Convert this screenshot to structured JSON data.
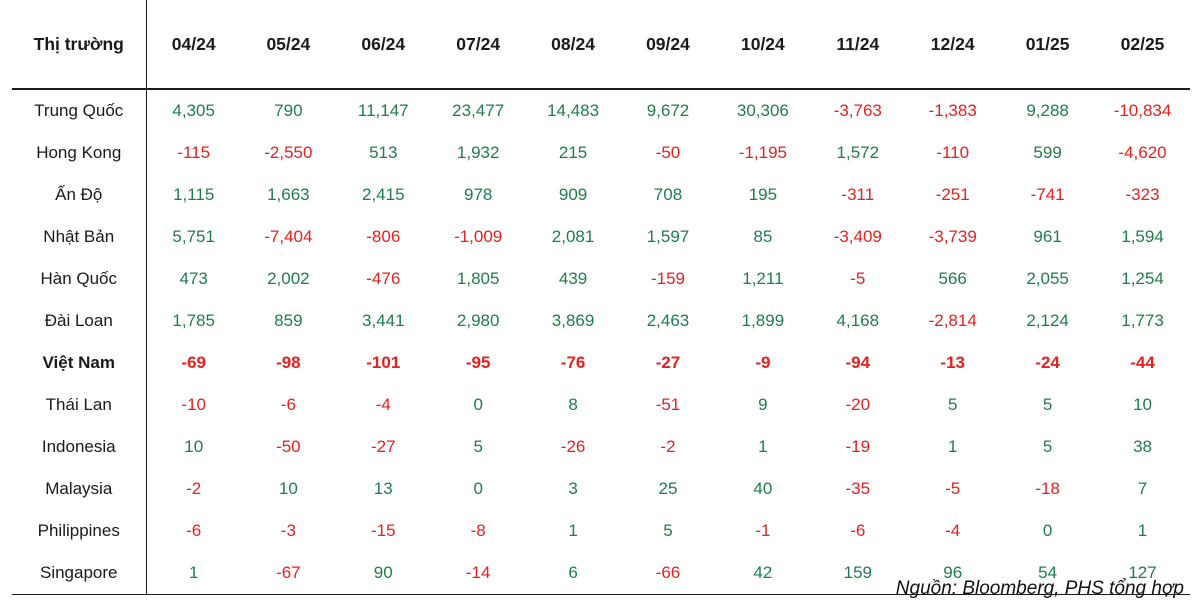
{
  "header": {
    "market_column_label": "Thị trường"
  },
  "footer": {
    "source_note": "Nguồn: Bloomberg, PHS tổng hợp"
  },
  "colors": {
    "positive": "#1f7d4c",
    "negative": "#e6201f",
    "rule": "#1c1c1c"
  },
  "chart_data": {
    "type": "table",
    "market_column_label": "Thị trường",
    "columns": [
      "04/24",
      "05/24",
      "06/24",
      "07/24",
      "08/24",
      "09/24",
      "10/24",
      "11/24",
      "12/24",
      "01/25",
      "02/25"
    ],
    "rows": [
      {
        "market": "Trung Quốc",
        "bold": false,
        "values": [
          4305,
          790,
          11147,
          23477,
          14483,
          9672,
          30306,
          -3763,
          -1383,
          9288,
          -10834
        ]
      },
      {
        "market": "Hong Kong",
        "bold": false,
        "values": [
          -115,
          -2550,
          513,
          1932,
          215,
          -50,
          -1195,
          1572,
          -110,
          599,
          -4620
        ]
      },
      {
        "market": "Ấn Độ",
        "bold": false,
        "values": [
          1115,
          1663,
          2415,
          978,
          909,
          708,
          195,
          -311,
          -251,
          -741,
          -323
        ]
      },
      {
        "market": "Nhật Bản",
        "bold": false,
        "values": [
          5751,
          -7404,
          -806,
          -1009,
          2081,
          1597,
          85,
          -3409,
          -3739,
          961,
          1594
        ]
      },
      {
        "market": "Hàn Quốc",
        "bold": false,
        "values": [
          473,
          2002,
          -476,
          1805,
          439,
          -159,
          1211,
          -5,
          566,
          2055,
          1254
        ]
      },
      {
        "market": "Đài Loan",
        "bold": false,
        "values": [
          1785,
          859,
          3441,
          2980,
          3869,
          2463,
          1899,
          4168,
          -2814,
          2124,
          1773
        ]
      },
      {
        "market": "Việt Nam",
        "bold": true,
        "values": [
          -69,
          -98,
          -101,
          -95,
          -76,
          -27,
          -9,
          -94,
          -13,
          -24,
          -44
        ]
      },
      {
        "market": "Thái Lan",
        "bold": false,
        "values": [
          -10,
          -6,
          -4,
          0,
          8,
          -51,
          9,
          -20,
          5,
          5,
          10
        ]
      },
      {
        "market": "Indonesia",
        "bold": false,
        "values": [
          10,
          -50,
          -27,
          5,
          -26,
          -2,
          1,
          -19,
          1,
          5,
          38
        ]
      },
      {
        "market": "Malaysia",
        "bold": false,
        "values": [
          -2,
          10,
          13,
          0,
          3,
          25,
          40,
          -35,
          -5,
          -18,
          7
        ]
      },
      {
        "market": "Philippines",
        "bold": false,
        "values": [
          -6,
          -3,
          -15,
          -8,
          1,
          5,
          -1,
          -6,
          -4,
          0,
          1
        ]
      },
      {
        "market": "Singapore",
        "bold": false,
        "values": [
          1,
          -67,
          90,
          -14,
          6,
          -66,
          42,
          159,
          96,
          54,
          127
        ]
      }
    ],
    "legend_position": "none",
    "notes": "positive values rendered green, negative values red; Việt Nam row emphasized bold"
  }
}
